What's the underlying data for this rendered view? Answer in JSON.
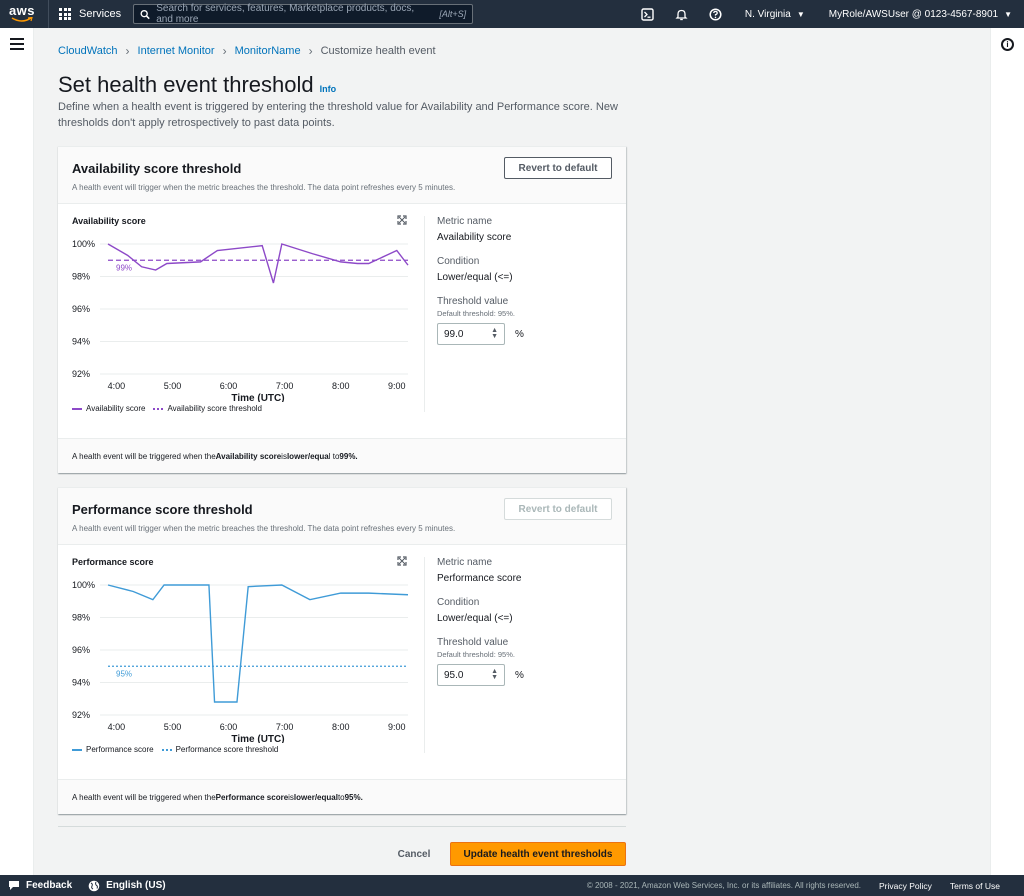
{
  "nav": {
    "logo_text": "aws",
    "services_label": "Services",
    "search_placeholder": "Search for services, features, Marketplace products, docs, and more",
    "search_shortcut": "[Alt+S]",
    "region": "N. Virginia",
    "account": "MyRole/AWSUser @ 0123-4567-8901"
  },
  "breadcrumb": {
    "items": [
      "CloudWatch",
      "Internet Monitor",
      "MonitorName"
    ],
    "current": "Customize health event"
  },
  "page": {
    "title": "Set health event threshold",
    "info": "Info",
    "description": "Define when a health event is triggered by entering the threshold value for Availability and Performance score. New thresholds don't apply retrospectively to past data points."
  },
  "availability": {
    "title": "Availability score threshold",
    "subtitle": "A health event will trigger when the metric breaches the threshold. The data point refreshes every 5 minutes.",
    "revert_label": "Revert to default",
    "chart_title": "Availability score",
    "meta_name_label": "Metric name",
    "meta_name": "Availability score",
    "condition_label": "Condition",
    "condition": "Lower/equal (<=)",
    "threshold_label": "Threshold value",
    "threshold_hint": "Default threshold: 95%.",
    "threshold_value": "99.0",
    "unit": "%",
    "footer_pre": "A health event will be triggered when the ",
    "footer_metric": "Availability score",
    "footer_mid": " is ",
    "footer_cond": "lower/equa",
    "footer_post": "l to ",
    "footer_value": "99%."
  },
  "performance": {
    "title": "Performance score threshold",
    "subtitle": "A health event will trigger when the metric breaches the threshold. The data point refreshes every 5 minutes.",
    "revert_label": "Revert to default",
    "chart_title": "Performance score",
    "meta_name_label": "Metric name",
    "meta_name": "Performance score",
    "condition_label": "Condition",
    "condition": "Lower/equal (<=)",
    "threshold_label": "Threshold value",
    "threshold_hint": "Default threshold: 95%.",
    "threshold_value": "95.0",
    "unit": "%",
    "footer_pre": "A health event will be triggered when the ",
    "footer_metric": "Performance score",
    "footer_mid": " is ",
    "footer_cond": "lower/equal",
    "footer_post": " to ",
    "footer_value": "95%."
  },
  "actions": {
    "cancel": "Cancel",
    "primary": "Update health event thresholds"
  },
  "footer": {
    "feedback": "Feedback",
    "language": "English (US)",
    "copyright": "© 2008 - 2021, Amazon Web Services, Inc. or its affiliates. All rights reserved.",
    "privacy": "Privacy Policy",
    "terms": "Terms of Use"
  },
  "chart_data": [
    {
      "type": "line",
      "title": "Availability score",
      "xlabel": "Time (UTC)",
      "x_ticks": [
        "4:00",
        "5:00",
        "6:00",
        "7:00",
        "8:00",
        "9:00"
      ],
      "y_ticks": [
        "92%",
        "94%",
        "96%",
        "98%",
        "100%"
      ],
      "ylim": [
        92,
        100
      ],
      "xlim": [
        3.85,
        9.2
      ],
      "grid": true,
      "series": [
        {
          "name": "Availability score",
          "color": "#8d49c8",
          "style": "solid",
          "x": [
            3.85,
            4.2,
            4.45,
            4.7,
            4.9,
            5.5,
            5.8,
            6.6,
            6.8,
            6.95,
            7.5,
            8.0,
            8.3,
            8.5,
            9.0,
            9.2
          ],
          "y": [
            100,
            99.3,
            98.6,
            98.4,
            98.8,
            98.9,
            99.6,
            99.9,
            97.6,
            100,
            99.4,
            98.9,
            98.8,
            98.8,
            99.6,
            98.7
          ]
        },
        {
          "name": "Availability score threshold",
          "color": "#8d49c8",
          "style": "dashed",
          "x": [
            3.85,
            9.2
          ],
          "y": [
            99,
            99
          ],
          "label": "99%"
        }
      ],
      "legend": "bottom"
    },
    {
      "type": "line",
      "title": "Performance score",
      "xlabel": "Time (UTC)",
      "x_ticks": [
        "4:00",
        "5:00",
        "6:00",
        "7:00",
        "8:00",
        "9:00"
      ],
      "y_ticks": [
        "92%",
        "94%",
        "96%",
        "98%",
        "100%"
      ],
      "ylim": [
        92,
        100
      ],
      "xlim": [
        3.85,
        9.2
      ],
      "grid": true,
      "series": [
        {
          "name": "Performance score",
          "color": "#3f9bd7",
          "style": "solid",
          "x": [
            3.85,
            4.3,
            4.65,
            4.85,
            5.1,
            5.65,
            5.75,
            6.15,
            6.35,
            6.95,
            7.45,
            8.0,
            8.5,
            9.2
          ],
          "y": [
            100,
            99.6,
            99.1,
            100,
            100,
            100,
            92.8,
            92.8,
            99.9,
            100,
            99.1,
            99.5,
            99.5,
            99.4
          ]
        },
        {
          "name": "Performance score threshold",
          "color": "#3f9bd7",
          "style": "dashed",
          "x": [
            3.85,
            9.2
          ],
          "y": [
            95,
            95
          ],
          "label": "95%"
        }
      ],
      "legend": "bottom"
    }
  ]
}
